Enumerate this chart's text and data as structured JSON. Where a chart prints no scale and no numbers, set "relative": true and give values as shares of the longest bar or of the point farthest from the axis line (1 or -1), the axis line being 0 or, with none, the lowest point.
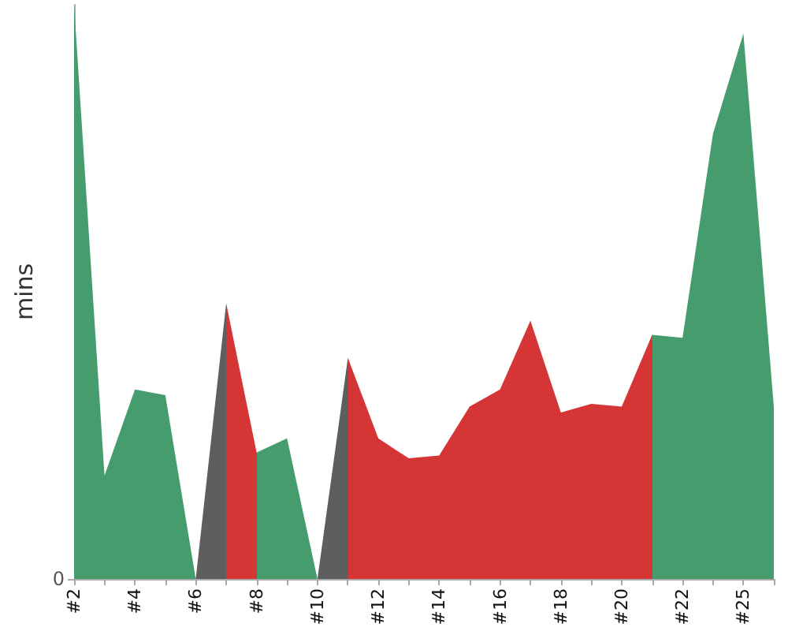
{
  "chart_data": {
    "type": "area",
    "ylabel": "mins",
    "relative": true,
    "annotations": [
      "0"
    ],
    "categories": [
      "#2",
      null,
      "#4",
      null,
      "#6",
      null,
      "#8",
      null,
      "#10",
      null,
      "#12",
      null,
      "#14",
      null,
      "#16",
      null,
      "#18",
      null,
      "#20",
      null,
      "#22",
      null,
      "#25",
      null
    ],
    "values": [
      1.0,
      0.18,
      0.33,
      0.32,
      0,
      0.48,
      0.22,
      0.245,
      0,
      0.385,
      0.245,
      0.21,
      0.215,
      0.3,
      0.33,
      0.45,
      0.29,
      0.305,
      0.3,
      0.425,
      0.42,
      0.775,
      0.95,
      0.3
    ],
    "colors": [
      "#459d6e",
      "#459d6e",
      "#459d6e",
      "#459d6e",
      "#5e5e5e",
      "#d63536",
      "#459d6e",
      "#459d6e",
      "#5e5e5e",
      "#d63536",
      "#d63536",
      "#d63536",
      "#d63536",
      "#d63536",
      "#d63536",
      "#d63536",
      "#d63536",
      "#d63536",
      "#d63536",
      "#459d6e",
      "#459d6e",
      "#459d6e",
      "#459d6e",
      "#459d6e"
    ]
  }
}
